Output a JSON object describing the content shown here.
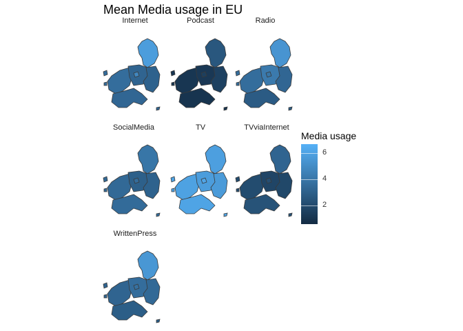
{
  "chart_data": {
    "type": "choropleth",
    "title": "Mean Media usage in EU",
    "facet_variable": "media",
    "facets": [
      {
        "name": "Internet",
        "values": {
          "north": 5.8,
          "west": 3.6,
          "center": 3.2,
          "east": 3.1,
          "south": 3.3,
          "spot": 4.8
        }
      },
      {
        "name": "Podcast",
        "values": {
          "north": 2.6,
          "west": 1.1,
          "center": 1.2,
          "east": 1.6,
          "south": 1.0,
          "spot": 1.5
        }
      },
      {
        "name": "Radio",
        "values": {
          "north": 5.4,
          "west": 3.6,
          "center": 4.2,
          "east": 3.3,
          "south": 2.8,
          "spot": 4.0
        }
      },
      {
        "name": "SocialMedia",
        "values": {
          "north": 4.0,
          "west": 3.4,
          "center": 3.0,
          "east": 3.1,
          "south": 3.5,
          "spot": 3.6
        }
      },
      {
        "name": "TV",
        "values": {
          "north": 5.9,
          "west": 6.0,
          "center": 5.8,
          "east": 5.7,
          "south": 6.1,
          "spot": 6.2
        }
      },
      {
        "name": "TVviaInternet",
        "values": {
          "north": 3.2,
          "west": 2.1,
          "center": 1.8,
          "east": 1.9,
          "south": 2.4,
          "spot": 2.2
        }
      },
      {
        "name": "WrittenPress",
        "values": {
          "north": 5.5,
          "west": 3.2,
          "center": 3.6,
          "east": 3.4,
          "south": 2.9,
          "spot": 3.8
        }
      }
    ],
    "legend": {
      "title": "Media usage",
      "min": 0.6,
      "max": 6.7,
      "ticks": [
        2,
        4,
        6
      ],
      "tick_labels": [
        "2",
        "4",
        "6"
      ],
      "low_color": "#132B43",
      "high_color": "#56B1F7",
      "position": "right"
    },
    "grid": false,
    "axes": false
  }
}
